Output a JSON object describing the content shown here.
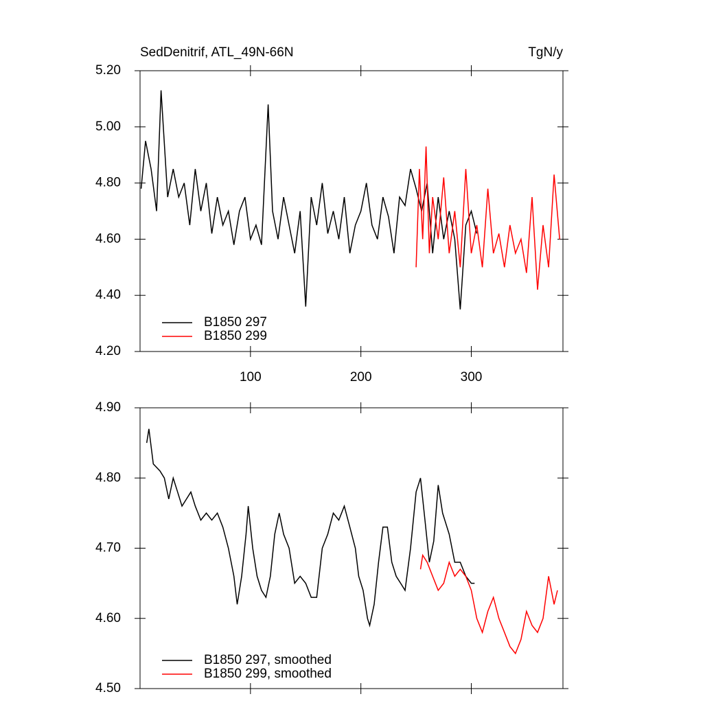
{
  "chart_data": [
    {
      "type": "line",
      "title": "SedDenitrif, ATL_49N-66N",
      "subtitle": "TgN/y",
      "xlim": [
        0,
        383
      ],
      "xticks": [
        100,
        200,
        300
      ],
      "xtick_labels": true,
      "ylim": [
        4.2,
        5.2
      ],
      "yticks": [
        {
          "value": 4.2,
          "label": "4.20"
        },
        {
          "value": 4.4,
          "label": "4.40"
        },
        {
          "value": 4.6,
          "label": "4.60"
        },
        {
          "value": 4.8,
          "label": "4.80"
        },
        {
          "value": 5.0,
          "label": "5.00"
        },
        {
          "value": 5.2,
          "label": "5.20"
        }
      ],
      "series": [
        {
          "name": "B1850 297",
          "color": "#000000",
          "x": [
            1,
            5,
            10,
            15,
            19,
            25,
            30,
            35,
            40,
            45,
            50,
            55,
            60,
            65,
            70,
            75,
            80,
            85,
            90,
            95,
            100,
            105,
            110,
            116,
            120,
            125,
            130,
            135,
            140,
            145,
            150,
            155,
            160,
            165,
            170,
            175,
            180,
            185,
            190,
            195,
            200,
            205,
            210,
            215,
            220,
            225,
            230,
            235,
            240,
            245,
            250,
            255,
            260,
            265,
            270,
            275,
            280,
            285,
            290,
            295,
            300,
            305
          ],
          "values": [
            4.78,
            4.95,
            4.85,
            4.7,
            5.13,
            4.75,
            4.85,
            4.75,
            4.8,
            4.65,
            4.85,
            4.7,
            4.8,
            4.62,
            4.75,
            4.65,
            4.7,
            4.58,
            4.7,
            4.75,
            4.6,
            4.65,
            4.58,
            5.08,
            4.7,
            4.6,
            4.75,
            4.65,
            4.55,
            4.7,
            4.36,
            4.75,
            4.65,
            4.8,
            4.62,
            4.7,
            4.6,
            4.75,
            4.55,
            4.65,
            4.7,
            4.8,
            4.65,
            4.6,
            4.75,
            4.68,
            4.55,
            4.75,
            4.72,
            4.85,
            4.78,
            4.7,
            4.8,
            4.55,
            4.75,
            4.6,
            4.7,
            4.6,
            4.35,
            4.65,
            4.7,
            4.62
          ]
        },
        {
          "name": "B1850 299",
          "color": "#ff0000",
          "x": [
            250,
            253,
            256,
            259,
            262,
            265,
            270,
            275,
            280,
            285,
            290,
            295,
            300,
            305,
            310,
            315,
            320,
            325,
            330,
            335,
            340,
            345,
            350,
            355,
            360,
            365,
            370,
            375,
            380
          ],
          "values": [
            4.5,
            4.85,
            4.6,
            4.93,
            4.55,
            4.75,
            4.6,
            4.82,
            4.55,
            4.7,
            4.5,
            4.85,
            4.55,
            4.65,
            4.5,
            4.78,
            4.55,
            4.62,
            4.5,
            4.65,
            4.55,
            4.6,
            4.48,
            4.75,
            4.42,
            4.65,
            4.5,
            4.83,
            4.6
          ]
        }
      ]
    },
    {
      "type": "line",
      "xlim": [
        0,
        383
      ],
      "xticks": [
        100,
        200,
        300
      ],
      "xtick_labels": false,
      "ylim": [
        4.5,
        4.9
      ],
      "yticks": [
        {
          "value": 4.5,
          "label": "4.50"
        },
        {
          "value": 4.6,
          "label": "4.60"
        },
        {
          "value": 4.7,
          "label": "4.70"
        },
        {
          "value": 4.8,
          "label": "4.80"
        },
        {
          "value": 4.9,
          "label": "4.90"
        }
      ],
      "series": [
        {
          "name": "B1850 297, smoothed",
          "color": "#000000",
          "x": [
            6,
            8,
            12,
            18,
            22,
            26,
            30,
            34,
            38,
            42,
            46,
            50,
            55,
            60,
            65,
            70,
            75,
            80,
            85,
            88,
            92,
            96,
            98,
            102,
            106,
            110,
            114,
            118,
            122,
            126,
            130,
            135,
            140,
            145,
            150,
            155,
            160,
            165,
            170,
            175,
            180,
            185,
            190,
            195,
            198,
            202,
            206,
            208,
            212,
            216,
            220,
            224,
            228,
            232,
            236,
            240,
            245,
            250,
            254,
            258,
            262,
            266,
            270,
            274,
            280,
            285,
            290,
            295,
            300,
            303
          ],
          "values": [
            4.85,
            4.87,
            4.82,
            4.81,
            4.8,
            4.77,
            4.8,
            4.78,
            4.76,
            4.77,
            4.78,
            4.76,
            4.74,
            4.75,
            4.74,
            4.75,
            4.73,
            4.7,
            4.66,
            4.62,
            4.66,
            4.72,
            4.76,
            4.7,
            4.66,
            4.64,
            4.63,
            4.66,
            4.72,
            4.75,
            4.72,
            4.7,
            4.65,
            4.66,
            4.65,
            4.63,
            4.63,
            4.7,
            4.72,
            4.75,
            4.74,
            4.76,
            4.73,
            4.7,
            4.66,
            4.64,
            4.6,
            4.59,
            4.62,
            4.68,
            4.73,
            4.73,
            4.68,
            4.66,
            4.65,
            4.64,
            4.7,
            4.78,
            4.8,
            4.74,
            4.68,
            4.71,
            4.79,
            4.75,
            4.72,
            4.68,
            4.68,
            4.66,
            4.65,
            4.65
          ]
        },
        {
          "name": "B1850 299, smoothed",
          "color": "#ff0000",
          "x": [
            254,
            256,
            260,
            265,
            270,
            275,
            280,
            285,
            290,
            295,
            300,
            305,
            310,
            315,
            320,
            325,
            330,
            335,
            340,
            345,
            350,
            355,
            360,
            365,
            370,
            375,
            378
          ],
          "values": [
            4.67,
            4.69,
            4.68,
            4.66,
            4.64,
            4.65,
            4.68,
            4.66,
            4.67,
            4.66,
            4.64,
            4.6,
            4.58,
            4.61,
            4.63,
            4.6,
            4.58,
            4.56,
            4.55,
            4.57,
            4.61,
            4.59,
            4.58,
            4.6,
            4.66,
            4.62,
            4.64
          ]
        }
      ]
    }
  ]
}
